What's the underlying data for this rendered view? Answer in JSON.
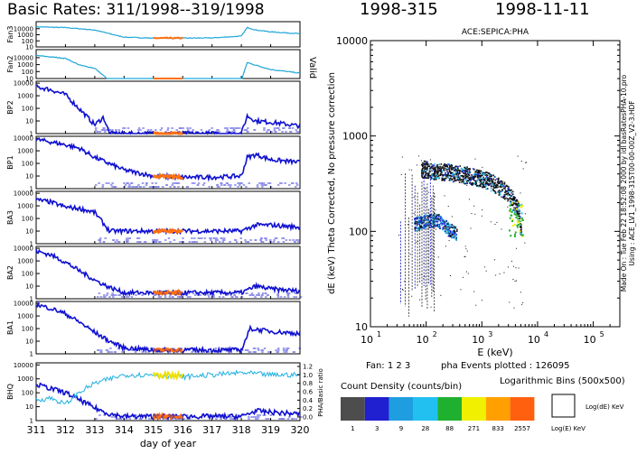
{
  "header": {
    "left_title": "Basic Rates: 311/1998--319/1998",
    "doy": "1998-315",
    "date": "1998-11-11"
  },
  "left": {
    "xlabel": "day of year",
    "x_ticks": [
      "311",
      "312",
      "313",
      "314",
      "315",
      "316",
      "317",
      "318",
      "319",
      "320"
    ],
    "valid_label": "Valid",
    "right_axis_ticks": [
      "1.2",
      "1.0",
      "0.8",
      "0.6",
      "0.4",
      "0.2",
      "0.0"
    ],
    "right_axis_label": "PHA/Basic ratio",
    "panels": [
      {
        "name": "Fan3",
        "ticks": [
          "10000",
          "1000",
          "100",
          "10"
        ]
      },
      {
        "name": "Fan2",
        "ticks": [
          "10000",
          "1000",
          "100",
          "10"
        ]
      },
      {
        "name": "BP2",
        "ticks": [
          "10000",
          "1000",
          "100",
          "10",
          "1"
        ]
      },
      {
        "name": "BP1",
        "ticks": [
          "10000",
          "1000",
          "100",
          "10",
          "1"
        ]
      },
      {
        "name": "BA3",
        "ticks": [
          "10000",
          "1000",
          "100",
          "10",
          "1"
        ]
      },
      {
        "name": "BA2",
        "ticks": [
          "10000",
          "1000",
          "100",
          "10",
          "1"
        ]
      },
      {
        "name": "BA1",
        "ticks": [
          "10000",
          "1000",
          "100",
          "10",
          "1"
        ]
      },
      {
        "name": "BHQ",
        "ticks": [
          "10000",
          "1000",
          "100",
          "10",
          "1"
        ]
      }
    ]
  },
  "right": {
    "plot_title": "ACE:SEPICA:PHA",
    "ylabel": "dE (keV) Theta Corrected, No pressure correction",
    "xlabel": "E (keV)",
    "y_ticks": [
      "10000",
      "1000",
      "100",
      "10"
    ],
    "x_tick_bases": [
      "10",
      "10",
      "10",
      "10",
      "10"
    ],
    "x_tick_exps": [
      "1",
      "2",
      "3",
      "4",
      "5"
    ],
    "fan_label": "Fan: 1 2 3",
    "events_label": "pha Events plotted : 126095",
    "side_note_1": "Made On : Tue Feb 22 18:52:08 2000   by idl basRatesPHA-10.pro",
    "side_note_2": "Using : ACE_LV1_1998-315T00-00-00Z_V2-3.HDF"
  },
  "legend": {
    "title": "Count Density (counts/bin)",
    "bins_title": "Logarithmic Bins (500x500)",
    "values": [
      "1",
      "3",
      "9",
      "28",
      "88",
      "271",
      "833",
      "2557"
    ],
    "colors": [
      "#4d4d4d",
      "#2020d0",
      "#1e9ee0",
      "#22c0f0",
      "#20b030",
      "#f0f000",
      "#ffa000",
      "#ff6010"
    ],
    "box_label_y": "Log(dE) KeV",
    "box_label_x": "Log(E) KeV"
  },
  "chart_data": [
    {
      "type": "line",
      "title": "Basic Rates: 311/1998--319/1998",
      "xlabel": "day of year",
      "xlim": [
        311,
        320
      ],
      "yscale": "log",
      "highlight_interval": [
        315,
        316
      ],
      "series": [
        {
          "name": "Fan3",
          "x": [
            311,
            312,
            313,
            313.5,
            314,
            315,
            316,
            317,
            318,
            318.2,
            318.5,
            319,
            320
          ],
          "values": [
            20000,
            15000,
            6000,
            1500,
            400,
            280,
            280,
            300,
            600,
            15000,
            6000,
            3000,
            1500
          ]
        },
        {
          "name": "Fan2",
          "x": [
            311,
            312,
            312.5,
            313,
            313.5,
            314,
            315,
            316,
            317,
            318,
            318.2,
            318.5,
            319,
            320
          ],
          "values": [
            20000,
            8000,
            800,
            300,
            5,
            5,
            5,
            5,
            5,
            5,
            2000,
            800,
            200,
            60
          ]
        },
        {
          "name": "BP2",
          "x": [
            311,
            311.5,
            312,
            312.5,
            313,
            313.3,
            313.5,
            318,
            318.2,
            318.5,
            319,
            320
          ],
          "values": [
            5000,
            3000,
            1200,
            80,
            5,
            20,
            1,
            1,
            25,
            10,
            8,
            4
          ]
        },
        {
          "name": "BP1",
          "x": [
            311,
            311.5,
            312,
            312.5,
            313,
            314,
            315,
            316,
            317,
            318,
            318.2,
            318.5,
            319,
            320
          ],
          "values": [
            8000,
            5000,
            3000,
            1500,
            300,
            30,
            10,
            8,
            8,
            10,
            300,
            500,
            200,
            120
          ]
        },
        {
          "name": "BA3",
          "x": [
            311,
            311.5,
            312,
            312.5,
            313,
            313.5,
            314,
            315,
            316,
            317,
            318,
            318.5,
            319,
            320
          ],
          "values": [
            3000,
            2000,
            800,
            600,
            300,
            10,
            10,
            10,
            10,
            10,
            10,
            30,
            30,
            20
          ]
        },
        {
          "name": "BA2",
          "x": [
            311,
            311.5,
            312,
            312.5,
            313,
            313.5,
            314,
            318,
            318.5,
            319,
            320
          ],
          "values": [
            6000,
            3000,
            800,
            150,
            30,
            8,
            3,
            3,
            10,
            6,
            4
          ]
        },
        {
          "name": "BA1",
          "x": [
            311,
            311.5,
            312,
            312.5,
            313,
            313.5,
            314,
            315,
            316,
            317,
            318,
            318.3,
            319,
            320
          ],
          "values": [
            8000,
            4000,
            1500,
            300,
            50,
            10,
            3,
            2,
            2,
            2,
            2,
            100,
            60,
            40
          ]
        },
        {
          "name": "BHQ",
          "x": [
            311,
            312,
            312.5,
            313,
            313.5,
            314,
            318,
            318.5,
            319,
            320
          ],
          "values": [
            400,
            100,
            30,
            8,
            3,
            2,
            2,
            5,
            4,
            3
          ]
        }
      ],
      "ratio_series": {
        "name": "PHA/Basic ratio",
        "x": [
          311,
          311.5,
          312,
          312.5,
          313,
          313.5,
          314,
          315,
          316,
          317,
          318,
          319,
          320
        ],
        "values": [
          0.4,
          0.45,
          0.3,
          0.6,
          0.8,
          0.9,
          1.0,
          1.0,
          0.95,
          1.0,
          1.05,
          1.0,
          1.0
        ]
      }
    },
    {
      "type": "heatmap",
      "title": "ACE:SEPICA:PHA",
      "xlabel": "E (keV)",
      "ylabel": "dE (keV) Theta Corrected, No pressure correction",
      "xscale": "log",
      "yscale": "log",
      "xlim": [
        10,
        300000
      ],
      "ylim": [
        10,
        10000
      ],
      "track": {
        "x": [
          80,
          120,
          200,
          400,
          800,
          1500,
          2500,
          3500,
          4500,
          5000
        ],
        "values": [
          420,
          400,
          390,
          370,
          340,
          300,
          250,
          200,
          150,
          90
        ]
      },
      "secondary_track": {
        "x": [
          60,
          100,
          150,
          250,
          350
        ],
        "values": [
          120,
          130,
          135,
          105,
          95
        ]
      }
    }
  ]
}
